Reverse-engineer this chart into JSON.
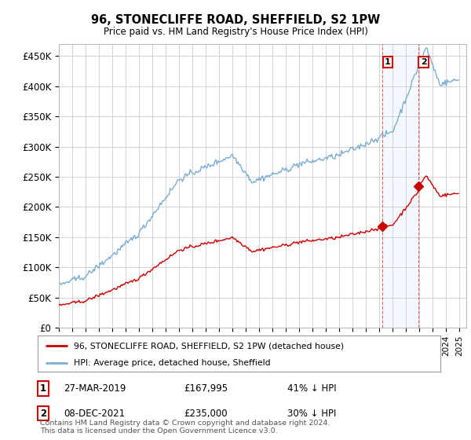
{
  "title": "96, STONECLIFFE ROAD, SHEFFIELD, S2 1PW",
  "subtitle": "Price paid vs. HM Land Registry's House Price Index (HPI)",
  "xlim_start": 1995.0,
  "xlim_end": 2025.5,
  "ylim": [
    0,
    470000
  ],
  "yticks": [
    0,
    50000,
    100000,
    150000,
    200000,
    250000,
    300000,
    350000,
    400000,
    450000
  ],
  "ytick_labels": [
    "£0",
    "£50K",
    "£100K",
    "£150K",
    "£200K",
    "£250K",
    "£300K",
    "£350K",
    "£400K",
    "£450K"
  ],
  "sale1_x": 2019.23,
  "sale1_y": 167995,
  "sale2_x": 2021.92,
  "sale2_y": 235000,
  "sale1_label": "27-MAR-2019",
  "sale1_price": "£167,995",
  "sale1_hpi": "41% ↓ HPI",
  "sale2_label": "08-DEC-2021",
  "sale2_price": "£235,000",
  "sale2_hpi": "30% ↓ HPI",
  "legend1": "96, STONECLIFFE ROAD, SHEFFIELD, S2 1PW (detached house)",
  "legend2": "HPI: Average price, detached house, Sheffield",
  "footer": "Contains HM Land Registry data © Crown copyright and database right 2024.\nThis data is licensed under the Open Government Licence v3.0.",
  "red_color": "#cc0000",
  "blue_color": "#7aadd4",
  "shade_color": "#ddeeff",
  "background_color": "#ffffff",
  "grid_color": "#cccccc"
}
